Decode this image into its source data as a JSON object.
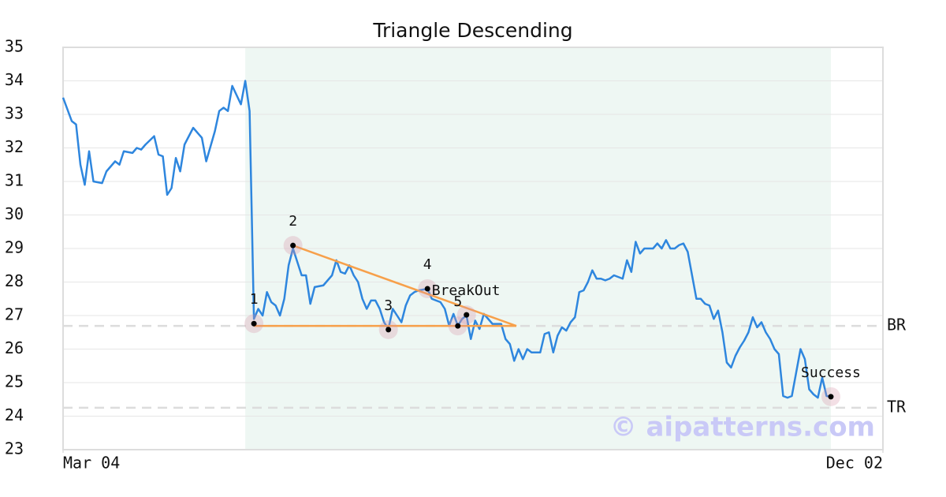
{
  "chart_data": {
    "type": "line",
    "title": "Triangle Descending",
    "x": [
      0,
      2,
      3,
      4,
      5,
      6,
      7,
      9,
      10,
      12,
      13,
      14,
      16,
      17,
      18,
      19,
      21,
      22,
      23,
      24,
      25,
      26,
      27,
      28,
      30,
      32,
      33,
      35,
      36,
      37,
      38,
      39,
      41,
      42,
      43,
      44,
      45,
      46,
      47,
      48,
      49,
      50,
      51,
      52,
      53,
      55,
      56,
      57,
      58,
      60,
      62,
      63,
      64,
      65,
      66,
      67,
      68,
      69,
      70,
      71,
      72,
      73,
      74,
      75,
      76,
      77,
      78,
      79,
      80,
      81,
      82,
      84,
      85,
      87,
      88,
      89,
      90,
      91,
      92,
      93,
      94,
      95,
      96,
      97,
      98,
      99,
      101,
      102,
      103,
      104,
      105,
      106,
      107,
      108,
      110,
      111,
      112,
      113,
      114,
      115,
      116,
      117,
      118,
      119,
      120,
      121,
      122,
      123,
      124,
      125,
      126,
      127,
      129,
      130,
      131,
      132,
      133,
      134,
      136,
      137,
      138,
      139,
      140,
      141,
      142,
      143,
      144,
      145,
      146,
      147,
      148,
      149,
      150,
      151,
      152,
      153,
      154,
      155,
      156,
      157,
      158,
      159,
      160,
      161,
      162,
      163,
      164,
      165,
      166,
      167,
      168,
      169,
      170,
      171,
      172,
      173,
      174,
      175,
      176,
      177
    ],
    "values": [
      33.5,
      32.8,
      32.7,
      31.5,
      30.9,
      31.9,
      31.0,
      30.95,
      31.3,
      31.6,
      31.5,
      31.9,
      31.85,
      32.0,
      31.95,
      32.1,
      32.35,
      31.8,
      31.75,
      30.6,
      30.8,
      31.7,
      31.3,
      32.1,
      32.6,
      32.3,
      31.6,
      32.5,
      33.1,
      33.2,
      33.1,
      33.85,
      33.3,
      34.0,
      33.1,
      26.9,
      27.2,
      27.0,
      27.7,
      27.4,
      27.3,
      27.0,
      27.5,
      28.5,
      29.0,
      28.2,
      28.2,
      27.35,
      27.85,
      27.9,
      28.2,
      28.65,
      28.3,
      28.25,
      28.5,
      28.2,
      28.0,
      27.5,
      27.2,
      27.45,
      27.45,
      27.2,
      26.8,
      26.6,
      27.2,
      27.0,
      26.8,
      27.3,
      27.6,
      27.7,
      27.75,
      27.8,
      27.5,
      27.4,
      27.2,
      26.7,
      27.05,
      26.7,
      26.9,
      27.0,
      26.3,
      26.85,
      26.6,
      27.05,
      26.9,
      26.75,
      26.75,
      26.3,
      26.15,
      25.65,
      26.0,
      25.7,
      26.0,
      25.9,
      25.9,
      26.45,
      26.5,
      25.9,
      26.4,
      26.65,
      26.55,
      26.8,
      26.95,
      27.7,
      27.75,
      28.0,
      28.35,
      28.1,
      28.1,
      28.05,
      28.1,
      28.2,
      28.1,
      28.65,
      28.3,
      29.2,
      28.85,
      29.0,
      29.0,
      29.15,
      29.0,
      29.25,
      29.0,
      29.0,
      29.1,
      29.15,
      28.9,
      28.2,
      27.5,
      27.5,
      27.35,
      27.3,
      26.9,
      27.15,
      26.5,
      25.6,
      25.45,
      25.8,
      26.05,
      26.25,
      26.5,
      26.95,
      26.65,
      26.8,
      26.5,
      26.3,
      26.0,
      25.85,
      24.6,
      24.55,
      24.6,
      25.3,
      26.0,
      25.7,
      24.8,
      24.65,
      24.55,
      25.15,
      24.6,
      24.58
    ],
    "color": "#2e86de",
    "xlim": [
      0,
      189
    ],
    "xticks": [
      {
        "value": 0,
        "label": "Mar 04"
      },
      {
        "value": 189,
        "label": "Dec 02"
      }
    ],
    "ylim": [
      23,
      35
    ],
    "yticks": [
      23,
      24,
      25,
      26,
      27,
      28,
      29,
      30,
      31,
      32,
      33,
      34,
      35
    ],
    "grid": true,
    "shade": [
      42,
      177
    ],
    "shade_color": "#eef7f3",
    "points": [
      {
        "label": "1",
        "x": 44,
        "y": 26.76
      },
      {
        "label": "2",
        "x": 53,
        "y": 29.09
      },
      {
        "label": "3",
        "x": 75,
        "y": 26.58
      },
      {
        "label": "4",
        "x": 84,
        "y": 27.8
      },
      {
        "label": "5",
        "x": 91,
        "y": 26.69
      },
      {
        "label": "BreakOut",
        "x": 93,
        "y": 27.02
      },
      {
        "label": "Success",
        "x": 177,
        "y": 24.58
      }
    ],
    "trendline_color": "#f7a04a",
    "trendlines": [
      {
        "from": [
          53,
          29.09
        ],
        "to": [
          104.5,
          26.69
        ]
      },
      {
        "from": [
          44,
          26.69
        ],
        "to": [
          104.5,
          26.69
        ]
      }
    ],
    "reference_lines": [
      {
        "label": "BR",
        "value": 26.69
      },
      {
        "label": "TR",
        "value": 24.25
      }
    ],
    "watermark": "© aipatterns.com"
  }
}
